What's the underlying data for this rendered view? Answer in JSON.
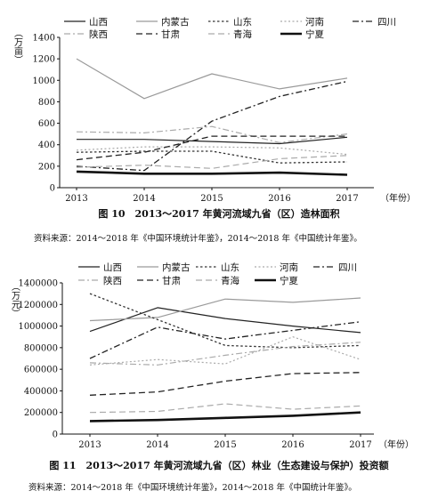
{
  "figures": [
    {
      "caption": "图 10　2013～2017 年黄河流域九省（区）造林面积",
      "source": "资料来源：2014～2018 年《中国环境统计年鉴》，2014～2018 年《中国统计年鉴》。"
    },
    {
      "caption": "图 11　2013～2017 年黄河流域九省（区）林业（生态建设与保护）投资额",
      "source": "资料来源：2014～2018 年《中国环境统计年鉴》，2014～2018 年《中国统计年鉴》。"
    }
  ],
  "chart_data": [
    {
      "type": "line",
      "title": "",
      "ylabel": "（万亩）",
      "xlabel": "（年份）",
      "categories": [
        "2013",
        "2014",
        "2015",
        "2016",
        "2017"
      ],
      "ylim": [
        0,
        1400
      ],
      "yticks": [
        0,
        200,
        400,
        600,
        800,
        1000,
        1200,
        1400
      ],
      "legend_position": "top",
      "series": [
        {
          "name": "山西",
          "style": "solid-thin",
          "color": "#222222",
          "values": [
            450,
            450,
            430,
            410,
            470
          ]
        },
        {
          "name": "内蒙古",
          "style": "solid-gray",
          "color": "#9a9a9a",
          "values": [
            1200,
            830,
            1060,
            920,
            1020
          ]
        },
        {
          "name": "山东",
          "style": "dotted",
          "color": "#333333",
          "values": [
            330,
            340,
            340,
            230,
            240
          ]
        },
        {
          "name": "河南",
          "style": "dotted-light",
          "color": "#aaaaaa",
          "values": [
            350,
            380,
            380,
            370,
            310
          ]
        },
        {
          "name": "四川",
          "style": "dashdot",
          "color": "#222222",
          "values": [
            200,
            160,
            620,
            850,
            990
          ]
        },
        {
          "name": "陕西",
          "style": "dashdot-light",
          "color": "#aaaaaa",
          "values": [
            520,
            510,
            570,
            420,
            500
          ]
        },
        {
          "name": "甘肃",
          "style": "dashed",
          "color": "#222222",
          "values": [
            260,
            330,
            480,
            480,
            480
          ]
        },
        {
          "name": "青海",
          "style": "dashed-light",
          "color": "#aaaaaa",
          "values": [
            190,
            210,
            180,
            270,
            300
          ]
        },
        {
          "name": "宁夏",
          "style": "solid-thick",
          "color": "#111111",
          "values": [
            150,
            130,
            130,
            140,
            120
          ]
        }
      ]
    },
    {
      "type": "line",
      "title": "",
      "ylabel": "（万元）",
      "xlabel": "（年份）",
      "categories": [
        "2013",
        "2014",
        "2015",
        "2016",
        "2017"
      ],
      "ylim": [
        0,
        1400000
      ],
      "yticks": [
        0,
        200000,
        400000,
        600000,
        800000,
        1000000,
        1200000,
        1400000
      ],
      "legend_position": "top",
      "series": [
        {
          "name": "山西",
          "style": "solid-thin",
          "color": "#222222",
          "values": [
            950000,
            1170000,
            1070000,
            1000000,
            940000
          ]
        },
        {
          "name": "内蒙古",
          "style": "solid-gray",
          "color": "#9a9a9a",
          "values": [
            1050000,
            1080000,
            1250000,
            1220000,
            1260000
          ]
        },
        {
          "name": "山东",
          "style": "dotted",
          "color": "#333333",
          "values": [
            1300000,
            1060000,
            820000,
            800000,
            820000
          ]
        },
        {
          "name": "河南",
          "style": "dotted-light",
          "color": "#aaaaaa",
          "values": [
            640000,
            690000,
            650000,
            900000,
            690000
          ]
        },
        {
          "name": "四川",
          "style": "dashdot",
          "color": "#222222",
          "values": [
            700000,
            990000,
            880000,
            960000,
            1040000
          ]
        },
        {
          "name": "陕西",
          "style": "dashdot-light",
          "color": "#aaaaaa",
          "values": [
            660000,
            640000,
            730000,
            810000,
            850000
          ]
        },
        {
          "name": "甘肃",
          "style": "dashed",
          "color": "#222222",
          "values": [
            360000,
            390000,
            490000,
            560000,
            570000
          ]
        },
        {
          "name": "青海",
          "style": "dashed-light",
          "color": "#aaaaaa",
          "values": [
            200000,
            210000,
            280000,
            230000,
            260000
          ]
        },
        {
          "name": "宁夏",
          "style": "solid-thick",
          "color": "#111111",
          "values": [
            120000,
            130000,
            150000,
            170000,
            200000
          ]
        }
      ]
    }
  ]
}
